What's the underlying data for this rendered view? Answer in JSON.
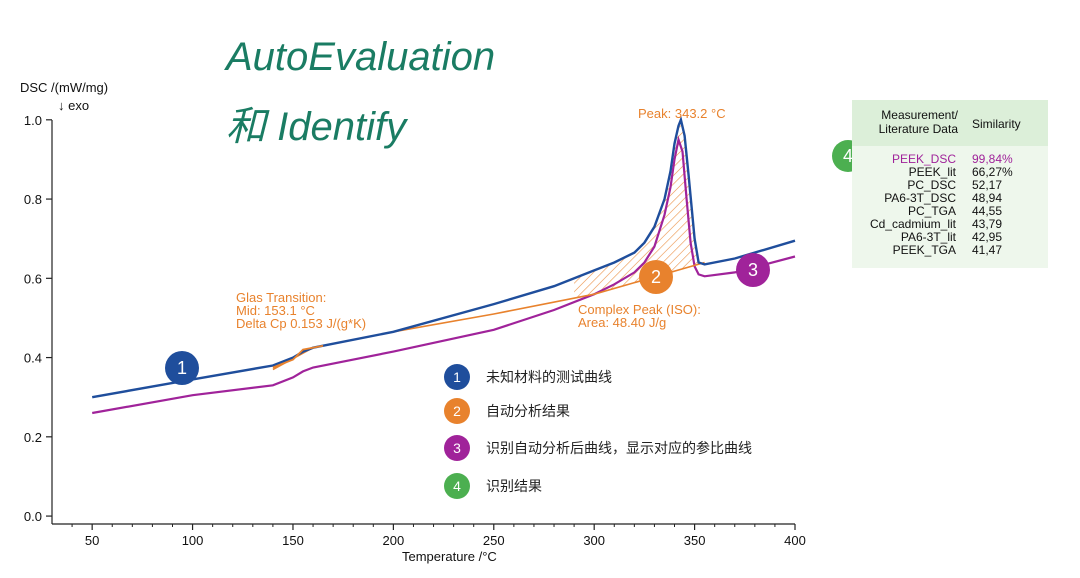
{
  "headline": {
    "line1": "AutoEvaluation",
    "line2": "和 Identify"
  },
  "chart_data": {
    "type": "line",
    "xlabel": "Temperature /°C",
    "ylabel": "DSC /(mW/mg)",
    "ylabel_note": "↓ exo",
    "xlim": [
      30,
      400
    ],
    "ylim": [
      -0.02,
      1.05
    ],
    "x_ticks": [
      50,
      100,
      150,
      200,
      250,
      300,
      350,
      400
    ],
    "y_ticks": [
      0.0,
      0.2,
      0.4,
      0.6,
      0.8,
      1.0
    ],
    "y_tick_labels": [
      "0.0",
      "0.2",
      "0.4",
      "0.6",
      "0.8",
      "1.0"
    ],
    "series": [
      {
        "key": "measured",
        "color": "#1f4e9c",
        "x": [
          50,
          100,
          140,
          150,
          155,
          160,
          200,
          250,
          280,
          300,
          310,
          320,
          325,
          330,
          335,
          338,
          340,
          342,
          343.2,
          345,
          347,
          350,
          352,
          355,
          370,
          400
        ],
        "y": [
          0.3,
          0.345,
          0.38,
          0.4,
          0.415,
          0.425,
          0.465,
          0.535,
          0.58,
          0.62,
          0.64,
          0.665,
          0.69,
          0.73,
          0.8,
          0.87,
          0.94,
          0.985,
          1.0,
          0.96,
          0.86,
          0.7,
          0.64,
          0.635,
          0.65,
          0.695
        ]
      },
      {
        "key": "reference",
        "color": "#a0239a",
        "x": [
          50,
          100,
          140,
          150,
          155,
          160,
          200,
          250,
          280,
          300,
          310,
          320,
          325,
          330,
          335,
          338,
          340,
          342,
          344,
          346,
          348,
          350,
          352,
          355,
          370,
          400
        ],
        "y": [
          0.26,
          0.305,
          0.33,
          0.35,
          0.365,
          0.375,
          0.415,
          0.47,
          0.52,
          0.56,
          0.585,
          0.615,
          0.64,
          0.68,
          0.76,
          0.83,
          0.9,
          0.95,
          0.92,
          0.8,
          0.69,
          0.63,
          0.61,
          0.605,
          0.615,
          0.655
        ]
      }
    ],
    "baseline": {
      "color": "#e8822d",
      "x": [
        140,
        160,
        200,
        250,
        300,
        355
      ],
      "y": [
        0.37,
        0.425,
        0.465,
        0.51,
        0.56,
        0.64
      ]
    },
    "annotations": {
      "peak": "Peak: 343.2 °C",
      "glass_title": "Glas Transition:",
      "glass_mid": "Mid: 153.1 °C",
      "glass_delta": "Delta Cp 0.153 J/(g*K)",
      "complex_title": "Complex Peak (ISO):",
      "complex_area": "Area: 48.40 J/g"
    }
  },
  "markers": [
    {
      "num": "1",
      "color": "#1f4e9c"
    },
    {
      "num": "2",
      "color": "#e8822d"
    },
    {
      "num": "3",
      "color": "#a0239a"
    },
    {
      "num": "4",
      "color": "#4caf50"
    }
  ],
  "legend": [
    {
      "num": "1",
      "color": "#1f4e9c",
      "text": "未知材料的测试曲线"
    },
    {
      "num": "2",
      "color": "#e8822d",
      "text": "自动分析结果"
    },
    {
      "num": "3",
      "color": "#a0239a",
      "text": "识别自动分析后曲线，显示对应的参比曲线"
    },
    {
      "num": "4",
      "color": "#4caf50",
      "text": "识别结果"
    }
  ],
  "table": {
    "header_col1_line1": "Measurement/",
    "header_col1_line2": "Literature Data",
    "header_col2": "Similarity",
    "rows": [
      {
        "name": "PEEK_DSC",
        "value": "99,84%",
        "highlight": true
      },
      {
        "name": "PEEK_lit",
        "value": "66,27%"
      },
      {
        "name": "PC_DSC",
        "value": "52,17"
      },
      {
        "name": "PA6-3T_DSC",
        "value": "48,94"
      },
      {
        "name": "PC_TGA",
        "value": "44,55"
      },
      {
        "name": "Cd_cadmium_lit",
        "value": "43,79"
      },
      {
        "name": "PA6-3T_lit",
        "value": "42,95"
      },
      {
        "name": "PEEK_TGA",
        "value": "41,47"
      }
    ],
    "header_bg": "#dcefd9",
    "body_bg": "#eef7ec",
    "highlight_color": "#a0239a"
  }
}
